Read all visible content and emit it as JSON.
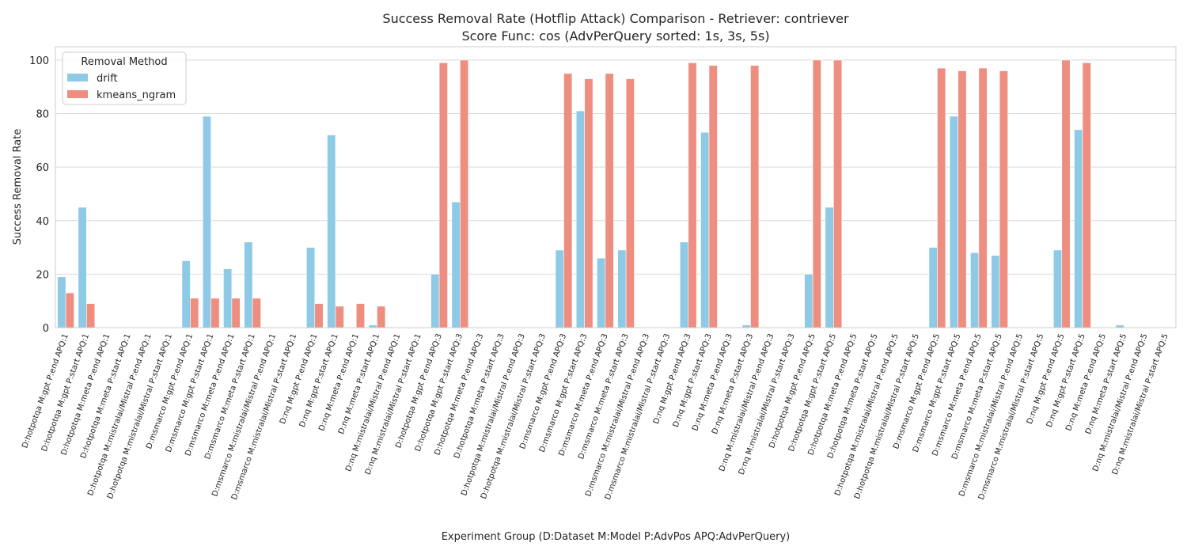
{
  "chart_data": {
    "type": "bar",
    "title_line1": "Success Removal Rate (Hotflip Attack) Comparison - Retriever: contriever",
    "title_line2": "Score Func: cos (AdvPerQuery sorted: 1s, 3s, 5s)",
    "xlabel": "Experiment Group (D:Dataset M:Model P:AdvPos APQ:AdvPerQuery)",
    "ylabel": "Success Removal Rate",
    "ylim": [
      0,
      105
    ],
    "yticks": [
      0,
      20,
      40,
      60,
      80,
      100
    ],
    "grid": true,
    "legend": {
      "title": "Removal Method",
      "placement": "top-left",
      "entries": [
        {
          "name": "drift",
          "color": "#8ecae6"
        },
        {
          "name": "kmeans_ngram",
          "color": "#ee8e80"
        }
      ]
    },
    "categories": [
      "D:hotpotqa M:gpt P:end APQ:1",
      "D:hotpotqa M:gpt P:start APQ:1",
      "D:hotpotqa M:meta P:end APQ:1",
      "D:hotpotqa M:meta P:start APQ:1",
      "D:hotpotqa M:mistralai/Mistral P:end APQ:1",
      "D:hotpotqa M:mistralai/Mistral P:start APQ:1",
      "D:msmarco M:gpt P:end APQ:1",
      "D:msmarco M:gpt P:start APQ:1",
      "D:msmarco M:meta P:end APQ:1",
      "D:msmarco M:meta P:start APQ:1",
      "D:msmarco M:mistralai/Mistral P:end APQ:1",
      "D:msmarco M:mistralai/Mistral P:start APQ:1",
      "D:nq M:gpt P:end APQ:1",
      "D:nq M:gpt P:start APQ:1",
      "D:nq M:meta P:end APQ:1",
      "D:nq M:meta P:start APQ:1",
      "D:nq M:mistralai/Mistral P:end APQ:1",
      "D:nq M:mistralai/Mistral P:start APQ:1",
      "D:hotpotqa M:gpt P:end APQ:3",
      "D:hotpotqa M:gpt P:start APQ:3",
      "D:hotpotqa M:meta P:end APQ:3",
      "D:hotpotqa M:meta P:start APQ:3",
      "D:hotpotqa M:mistralai/Mistral P:end APQ:3",
      "D:hotpotqa M:mistralai/Mistral P:start APQ:3",
      "D:msmarco M:gpt P:end APQ:3",
      "D:msmarco M:gpt P:start APQ:3",
      "D:msmarco M:meta P:end APQ:3",
      "D:msmarco M:meta P:start APQ:3",
      "D:msmarco M:mistralai/Mistral P:end APQ:3",
      "D:msmarco M:mistralai/Mistral P:start APQ:3",
      "D:nq M:gpt P:end APQ:3",
      "D:nq M:gpt P:start APQ:3",
      "D:nq M:meta P:end APQ:3",
      "D:nq M:meta P:start APQ:3",
      "D:nq M:mistralai/Mistral P:end APQ:3",
      "D:nq M:mistralai/Mistral P:start APQ:3",
      "D:hotpotqa M:gpt P:end APQ:5",
      "D:hotpotqa M:gpt P:start APQ:5",
      "D:hotpotqa M:meta P:end APQ:5",
      "D:hotpotqa M:meta P:start APQ:5",
      "D:hotpotqa M:mistralai/Mistral P:end APQ:5",
      "D:hotpotqa M:mistralai/Mistral P:start APQ:5",
      "D:msmarco M:gpt P:end APQ:5",
      "D:msmarco M:gpt P:start APQ:5",
      "D:msmarco M:meta P:end APQ:5",
      "D:msmarco M:meta P:start APQ:5",
      "D:msmarco M:mistralai/Mistral P:end APQ:5",
      "D:msmarco M:mistralai/Mistral P:start APQ:5",
      "D:nq M:gpt P:end APQ:5",
      "D:nq M:gpt P:start APQ:5",
      "D:nq M:meta P:end APQ:5",
      "D:nq M:meta P:start APQ:5",
      "D:nq M:mistralai/Mistral P:end APQ:5",
      "D:nq M:mistralai/Mistral P:start APQ:5"
    ],
    "series": [
      {
        "name": "drift",
        "color": "#8ecae6",
        "values": [
          19,
          45,
          0,
          0,
          0,
          0,
          25,
          79,
          22,
          32,
          0,
          0,
          30,
          72,
          0,
          1,
          0,
          0,
          20,
          47,
          0,
          0,
          0,
          0,
          29,
          81,
          26,
          29,
          0,
          0,
          32,
          73,
          0,
          1,
          0,
          0,
          20,
          45,
          0,
          0,
          0,
          0,
          30,
          79,
          28,
          27,
          0,
          0,
          29,
          74,
          0,
          1,
          0,
          0
        ]
      },
      {
        "name": "kmeans_ngram",
        "color": "#ee8e80",
        "values": [
          13,
          9,
          0,
          0,
          0,
          0,
          11,
          11,
          11,
          11,
          0,
          0,
          9,
          8,
          9,
          8,
          0,
          0,
          99,
          100,
          0,
          0,
          0,
          0,
          95,
          93,
          95,
          93,
          0,
          0,
          99,
          98,
          0,
          98,
          0,
          0,
          100,
          100,
          0,
          0,
          0,
          0,
          97,
          96,
          97,
          96,
          0,
          0,
          100,
          99,
          0,
          0,
          0,
          0
        ]
      }
    ]
  }
}
